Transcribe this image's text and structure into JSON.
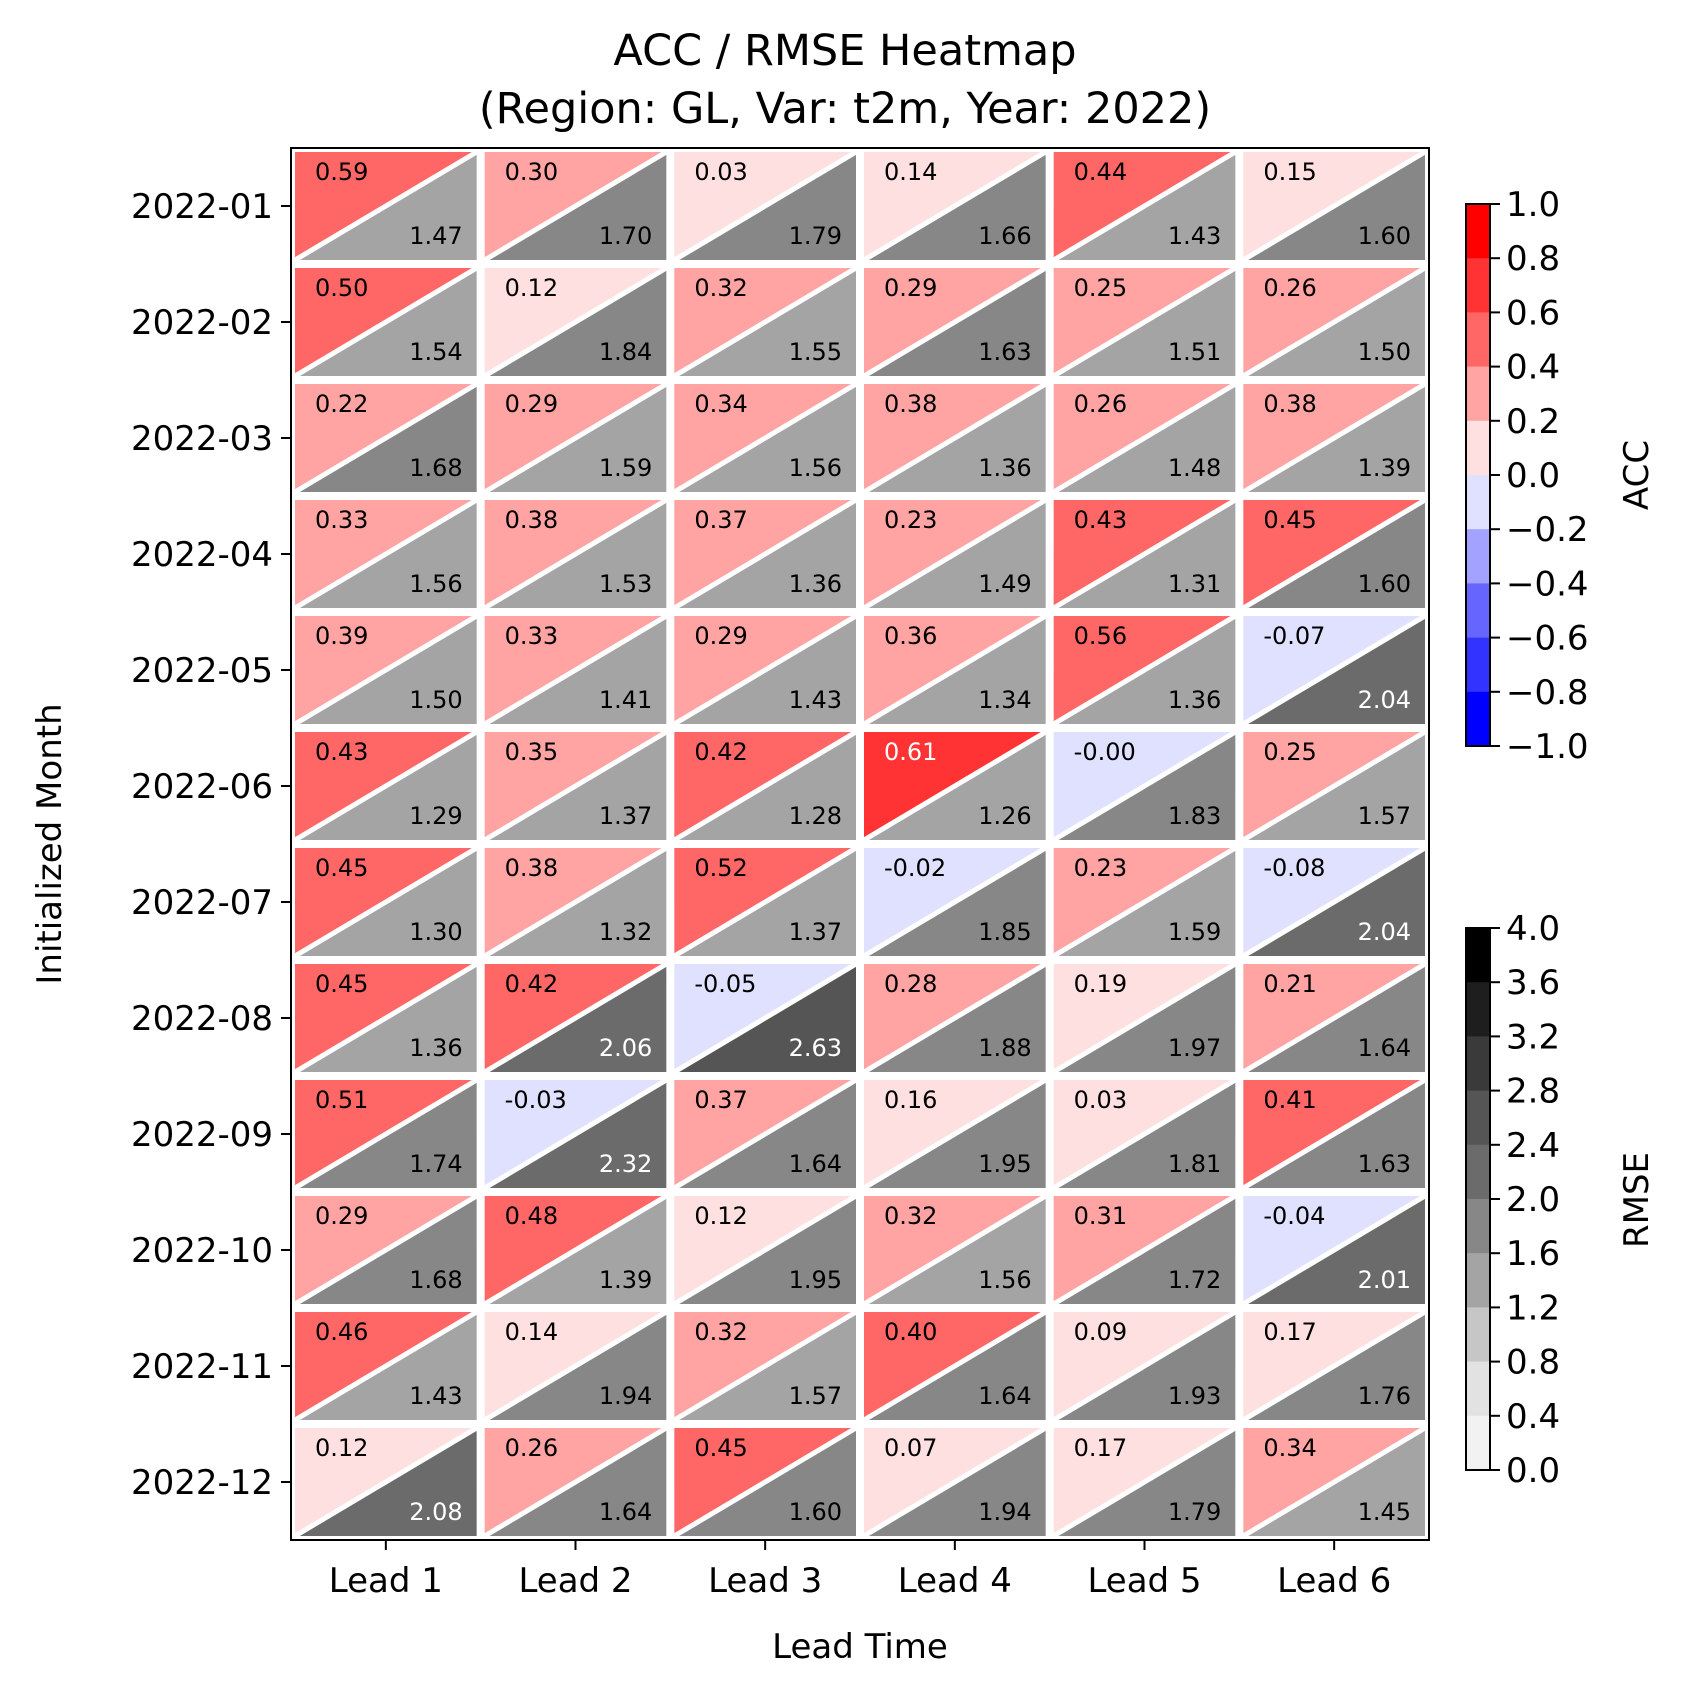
{
  "chart_data": {
    "type": "heatmap",
    "title": [
      "ACC / RMSE Heatmap",
      "(Region: GL, Var: t2m, Year: 2022)"
    ],
    "xlabel": "Lead Time",
    "ylabel": "Initialized Month",
    "x_categories": [
      "Lead 1",
      "Lead 2",
      "Lead 3",
      "Lead 4",
      "Lead 5",
      "Lead 6"
    ],
    "y_categories": [
      "2022-01",
      "2022-02",
      "2022-03",
      "2022-04",
      "2022-05",
      "2022-06",
      "2022-07",
      "2022-08",
      "2022-09",
      "2022-10",
      "2022-11",
      "2022-12"
    ],
    "acc": [
      [
        "0.59",
        "0.30",
        "0.03",
        "0.14",
        "0.44",
        "0.15"
      ],
      [
        "0.50",
        "0.12",
        "0.32",
        "0.29",
        "0.25",
        "0.26"
      ],
      [
        "0.22",
        "0.29",
        "0.34",
        "0.38",
        "0.26",
        "0.38"
      ],
      [
        "0.33",
        "0.38",
        "0.37",
        "0.23",
        "0.43",
        "0.45"
      ],
      [
        "0.39",
        "0.33",
        "0.29",
        "0.36",
        "0.56",
        "-0.07"
      ],
      [
        "0.43",
        "0.35",
        "0.42",
        "0.61",
        "-0.00",
        "0.25"
      ],
      [
        "0.45",
        "0.38",
        "0.52",
        "-0.02",
        "0.23",
        "-0.08"
      ],
      [
        "0.45",
        "0.42",
        "-0.05",
        "0.28",
        "0.19",
        "0.21"
      ],
      [
        "0.51",
        "-0.03",
        "0.37",
        "0.16",
        "0.03",
        "0.41"
      ],
      [
        "0.29",
        "0.48",
        "0.12",
        "0.32",
        "0.31",
        "-0.04"
      ],
      [
        "0.46",
        "0.14",
        "0.32",
        "0.40",
        "0.09",
        "0.17"
      ],
      [
        "0.12",
        "0.26",
        "0.45",
        "0.07",
        "0.17",
        "0.34"
      ]
    ],
    "rmse": [
      [
        "1.47",
        "1.70",
        "1.79",
        "1.66",
        "1.43",
        "1.60"
      ],
      [
        "1.54",
        "1.84",
        "1.55",
        "1.63",
        "1.51",
        "1.50"
      ],
      [
        "1.68",
        "1.59",
        "1.56",
        "1.36",
        "1.48",
        "1.39"
      ],
      [
        "1.56",
        "1.53",
        "1.36",
        "1.49",
        "1.31",
        "1.60"
      ],
      [
        "1.50",
        "1.41",
        "1.43",
        "1.34",
        "1.36",
        "2.04"
      ],
      [
        "1.29",
        "1.37",
        "1.28",
        "1.26",
        "1.83",
        "1.57"
      ],
      [
        "1.30",
        "1.32",
        "1.37",
        "1.85",
        "1.59",
        "2.04"
      ],
      [
        "1.36",
        "2.06",
        "2.63",
        "1.88",
        "1.97",
        "1.64"
      ],
      [
        "1.74",
        "2.32",
        "1.64",
        "1.95",
        "1.81",
        "1.63"
      ],
      [
        "1.68",
        "1.39",
        "1.95",
        "1.56",
        "1.72",
        "2.01"
      ],
      [
        "1.43",
        "1.94",
        "1.57",
        "1.64",
        "1.93",
        "1.76"
      ],
      [
        "2.08",
        "1.64",
        "1.60",
        "1.94",
        "1.79",
        "1.45"
      ]
    ],
    "acc_colorbar": {
      "label": "ACC",
      "range": [
        -1.0,
        1.0
      ],
      "ticks": [
        "1.0",
        "0.8",
        "0.6",
        "0.4",
        "0.2",
        "0.0",
        "−0.2",
        "−0.4",
        "−0.6",
        "−0.8",
        "−1.0"
      ],
      "colors_top_to_bottom": [
        "#ff0000",
        "#ff3333",
        "#ff6666",
        "#ffa3a3",
        "#ffe0e0",
        "#e0e0ff",
        "#a3a3ff",
        "#6666ff",
        "#3333ff",
        "#0000ff"
      ]
    },
    "rmse_colorbar": {
      "label": "RMSE",
      "range": [
        0.0,
        4.0
      ],
      "ticks": [
        "4.0",
        "3.6",
        "3.2",
        "2.8",
        "2.4",
        "2.0",
        "1.6",
        "1.2",
        "0.8",
        "0.4",
        "0.0"
      ],
      "colors_top_to_bottom": [
        "#000000",
        "#1e1e1e",
        "#3a3a3a",
        "#555555",
        "#6b6b6b",
        "#878787",
        "#a4a4a4",
        "#c6c6c6",
        "#e2e2e2",
        "#f2f2f2"
      ]
    }
  }
}
